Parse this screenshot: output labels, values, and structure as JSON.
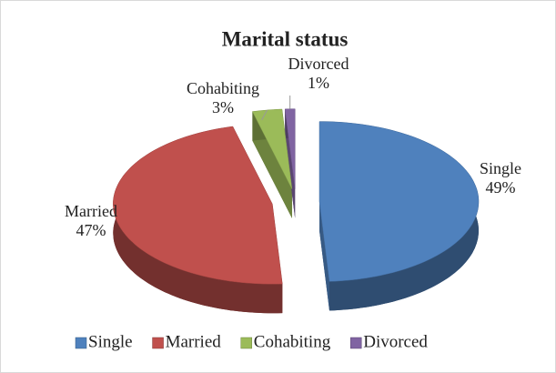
{
  "chart_data": {
    "type": "pie",
    "title": "Marital status",
    "categories": [
      "Single",
      "Married",
      "Cohabiting",
      "Divorced"
    ],
    "values": [
      49,
      47,
      3,
      1
    ],
    "value_labels": [
      "49%",
      "47%",
      "3%",
      "1%"
    ],
    "colors": [
      "#4f81bd",
      "#c0504d",
      "#9bbb59",
      "#8064a2"
    ],
    "legend": "bottom"
  }
}
